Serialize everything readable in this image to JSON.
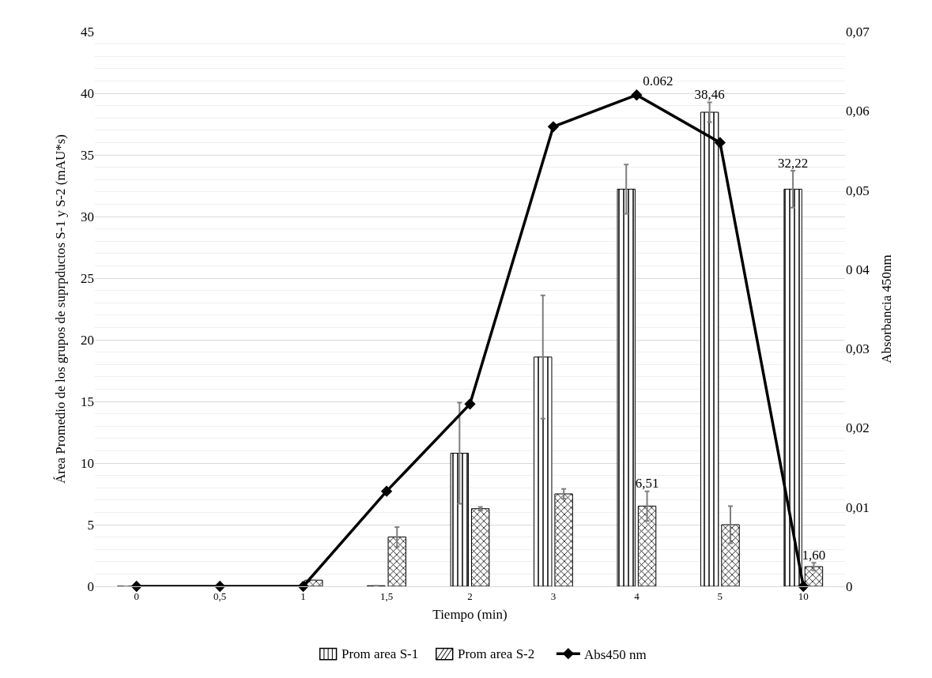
{
  "chart_data": {
    "type": "bar",
    "xlabel": "Tiempo (min)",
    "ylabel": "Área Promedio de los grupos de suprpductos S-1 y S-2 (mAU*s)",
    "y2label": "Absorbancia 450nm",
    "categories": [
      "0",
      "0,5",
      "1",
      "1,5",
      "2",
      "3",
      "4",
      "5",
      "10"
    ],
    "series": [
      {
        "name": "Prom area S-1",
        "color": "#000000",
        "values": [
          0,
          0,
          0,
          0.05,
          10.8,
          18.6,
          32.22,
          38.46,
          32.22
        ],
        "errors": [
          null,
          null,
          null,
          null,
          4.1,
          5.0,
          2.0,
          0.8,
          1.5
        ],
        "value_labels": [
          null,
          null,
          null,
          null,
          null,
          null,
          null,
          "38,46",
          "32,22"
        ]
      },
      {
        "name": "Prom area S-2",
        "color": "#000000",
        "values": [
          0,
          0,
          0.5,
          4.0,
          6.3,
          7.5,
          6.51,
          5.0,
          1.6
        ],
        "errors": [
          null,
          null,
          null,
          0.8,
          0.15,
          0.4,
          1.2,
          1.5,
          0.3
        ],
        "value_labels": [
          null,
          null,
          null,
          null,
          null,
          null,
          "6,51",
          null,
          "1,60"
        ]
      },
      {
        "name": "Abs450 nm",
        "type": "line",
        "axis": "y2",
        "color": "#000000",
        "marker": "diamond",
        "values": [
          0,
          0,
          0,
          0.012,
          0.023,
          0.058,
          0.062,
          0.056,
          0
        ],
        "value_labels": [
          null,
          null,
          null,
          null,
          null,
          null,
          "0.062",
          null,
          null
        ]
      }
    ],
    "ylim": [
      0,
      45
    ],
    "yticks": [
      0,
      5,
      10,
      15,
      20,
      25,
      30,
      35,
      40,
      45
    ],
    "y2lim": [
      0,
      0.07
    ],
    "y2ticks": [
      0,
      {
        "value": 0.01,
        "label": "0,01"
      },
      {
        "value": 0.02,
        "label": "0,02"
      },
      {
        "value": 0.03,
        "label": "0,03"
      },
      {
        "value": 0.04,
        "label": "0 04"
      },
      {
        "value": 0.05,
        "label": "0,05"
      },
      {
        "value": 0.06,
        "label": "0,06"
      },
      {
        "value": 0.07,
        "label": "0,07"
      }
    ],
    "grid": "y",
    "legend": "bottom"
  }
}
